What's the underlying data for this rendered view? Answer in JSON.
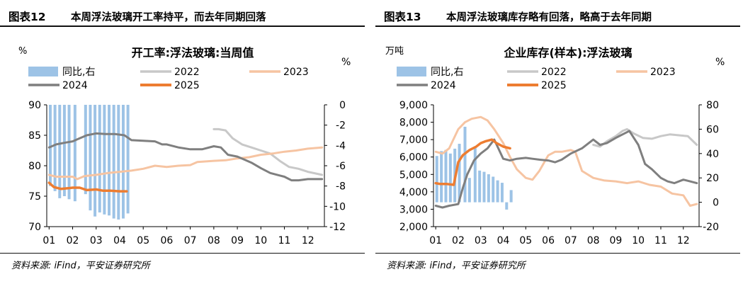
{
  "panels": [
    {
      "figure_label": "图表12",
      "heading": "本周浮法玻璃开工率持平，而去年同期回落",
      "source": "资料来源: iFind，平安证券研究所"
    },
    {
      "figure_label": "图表13",
      "heading": "本周浮法玻璃库存略有回落，略高于去年同期",
      "source": "资料来源: iFind，平安证券研究所"
    }
  ],
  "colors": {
    "c2022": "#c8c8c8",
    "c2023": "#f6c4a2",
    "c2024": "#7f7f7f",
    "c2025": "#ed7d31",
    "bar": "#9dc3e6"
  },
  "chart_data": [
    {
      "type": "line",
      "title": "开工率:浮法玻璃:当周值",
      "left_unit": "%",
      "right_unit": "%",
      "ylim": [
        70,
        90
      ],
      "y2lim": [
        -12,
        0
      ],
      "yticks": [
        "90",
        "85",
        "80",
        "75",
        "70"
      ],
      "y2ticks": [
        "0",
        "-2",
        "-4",
        "-6",
        "-8",
        "-10",
        "-12"
      ],
      "categories": [
        "01",
        "02",
        "03",
        "04",
        "05",
        "06",
        "07",
        "08",
        "09",
        "10",
        "11",
        "12"
      ],
      "legend": [
        "同比,右",
        "2022",
        "2023",
        "2024",
        "2025"
      ],
      "series": [
        {
          "name": "2022",
          "axis": "left",
          "x": [
            8,
            8.2,
            8.5,
            8.8,
            9.2,
            9.6,
            10,
            10.4,
            10.8,
            11.2,
            11.6,
            12,
            12.6
          ],
          "y": [
            86,
            86,
            85.8,
            84.5,
            83.5,
            83,
            82.5,
            82,
            80.8,
            79.8,
            79.5,
            79,
            78.5
          ]
        },
        {
          "name": "2023",
          "axis": "left",
          "x": [
            1,
            1.3,
            1.6,
            2,
            2.2,
            2.5,
            3,
            3.5,
            4,
            4.5,
            5,
            5.5,
            6,
            6.5,
            7,
            7.3,
            8,
            8.5,
            9,
            9.5,
            10,
            10.5,
            11,
            11.5,
            12,
            12.6
          ],
          "y": [
            78.5,
            78.2,
            78.2,
            78.2,
            77.8,
            78.3,
            78.5,
            78.8,
            79,
            79.2,
            79.5,
            80,
            79.8,
            80,
            80.1,
            80.6,
            80.8,
            80.9,
            81.2,
            81.4,
            81.8,
            82,
            82.3,
            82.5,
            82.8,
            83
          ]
        },
        {
          "name": "2024",
          "axis": "left",
          "x": [
            1,
            1.3,
            1.7,
            2,
            2.3,
            2.6,
            3,
            3.4,
            3.8,
            4.2,
            4.5,
            5,
            5.5,
            5.8,
            6,
            6.5,
            7,
            7.5,
            8,
            8.3,
            8.6,
            9,
            9.3,
            9.6,
            10,
            10.4,
            10.8,
            11,
            11.3,
            11.6,
            12,
            12.6
          ],
          "y": [
            83,
            83.5,
            83.8,
            84,
            84.5,
            85,
            85.3,
            85.2,
            85.2,
            85,
            84.2,
            84.1,
            84,
            83.5,
            83.5,
            83,
            82.7,
            82.7,
            83.2,
            83,
            81.8,
            81.5,
            81,
            80.5,
            79.6,
            78.8,
            78.4,
            78.2,
            77.6,
            77.6,
            77.8,
            77.8
          ]
        },
        {
          "name": "2025",
          "axis": "left",
          "x": [
            1,
            1.2,
            1.5,
            1.8,
            2,
            2.3,
            2.6,
            3,
            3.3,
            3.6,
            4,
            4.3
          ],
          "y": [
            77.2,
            76.5,
            76.2,
            76.3,
            76.4,
            76.4,
            76,
            76.1,
            75.9,
            75.9,
            75.8,
            75.8
          ]
        },
        {
          "name": "同比,右",
          "axis": "right",
          "type": "bar",
          "x": [
            1.05,
            1.25,
            1.45,
            1.65,
            1.85,
            2.1,
            2.3,
            2.55,
            2.75,
            2.95,
            3.15,
            3.35,
            3.55,
            3.75,
            3.95,
            4.15,
            4.35
          ],
          "y": [
            -8,
            -8.5,
            -9.2,
            -9,
            -9.3,
            -9.5,
            0,
            -8.8,
            -10.4,
            -11,
            -10.6,
            -10.8,
            -10.9,
            -11.2,
            -11.3,
            -11.2,
            -10.7
          ]
        }
      ]
    },
    {
      "type": "line",
      "title": "企业库存(样本):浮法玻璃",
      "left_unit": "万吨",
      "right_unit": "%",
      "ylim": [
        2000,
        9000
      ],
      "y2lim": [
        -20,
        80
      ],
      "yticks": [
        "9,000",
        "8,000",
        "7,000",
        "6,000",
        "5,000",
        "4,000",
        "3,000",
        "2,000"
      ],
      "y2ticks": [
        "80",
        "60",
        "40",
        "20",
        "0",
        "-20"
      ],
      "categories": [
        "01",
        "02",
        "03",
        "04",
        "05",
        "06",
        "07",
        "08",
        "09",
        "10",
        "11",
        "12"
      ],
      "legend": [
        "同比,右",
        "2022",
        "2023",
        "2024",
        "2025"
      ],
      "series": [
        {
          "name": "2022",
          "axis": "left",
          "x": [
            8,
            8.3,
            8.6,
            9,
            9.3,
            9.5,
            9.8,
            10.2,
            10.6,
            11,
            11.4,
            11.8,
            12.2,
            12.6
          ],
          "y": [
            6700,
            6600,
            6900,
            7200,
            7500,
            7600,
            7350,
            7100,
            7050,
            7200,
            7300,
            7250,
            7200,
            6700
          ]
        },
        {
          "name": "2023",
          "axis": "left",
          "x": [
            1,
            1.3,
            1.6,
            2,
            2.3,
            2.6,
            3,
            3.3,
            3.6,
            4,
            4.3,
            4.6,
            5,
            5.3,
            5.6,
            6,
            6.3,
            6.6,
            7,
            7.2,
            7.5,
            8,
            8.5,
            9,
            9.5,
            10,
            10.5,
            11,
            11.5,
            12,
            12.3,
            12.6
          ],
          "y": [
            6300,
            6200,
            6500,
            7600,
            8000,
            8200,
            8300,
            8100,
            7600,
            6800,
            6000,
            5300,
            4800,
            4700,
            5200,
            6100,
            6300,
            6300,
            6400,
            6300,
            5200,
            4800,
            4650,
            4600,
            4500,
            4600,
            4400,
            4300,
            3900,
            3800,
            3200,
            3300
          ]
        },
        {
          "name": "2024",
          "axis": "left",
          "x": [
            1,
            1.3,
            1.6,
            2,
            2.2,
            2.4,
            2.7,
            3,
            3.3,
            3.6,
            4,
            4.3,
            4.6,
            5,
            5.3,
            5.6,
            6,
            6.3,
            6.6,
            7,
            7.5,
            8,
            8.3,
            8.6,
            9,
            9.3,
            9.6,
            10,
            10.3,
            10.6,
            11,
            11.3,
            11.6,
            12,
            12.3,
            12.6
          ],
          "y": [
            3200,
            3100,
            3200,
            3300,
            4200,
            5000,
            5800,
            6200,
            6500,
            7000,
            5900,
            5800,
            5900,
            5950,
            5900,
            5850,
            5800,
            5700,
            5850,
            6200,
            6500,
            7000,
            6700,
            6800,
            7100,
            7300,
            7500,
            6700,
            5600,
            5300,
            4800,
            4600,
            4500,
            4700,
            4600,
            4500
          ]
        },
        {
          "name": "2025",
          "axis": "left",
          "x": [
            1,
            1.2,
            1.5,
            1.8,
            2,
            2.2,
            2.5,
            2.8,
            3,
            3.2,
            3.5,
            3.7,
            4,
            4.3
          ],
          "y": [
            4500,
            4450,
            4450,
            4400,
            5700,
            6100,
            6400,
            6600,
            6800,
            6900,
            7000,
            6800,
            6600,
            6500
          ]
        },
        {
          "name": "同比,右",
          "axis": "right",
          "type": "bar",
          "x": [
            1.05,
            1.25,
            1.45,
            1.65,
            1.85,
            2.05,
            2.3,
            2.5,
            2.75,
            2.95,
            3.15,
            3.35,
            3.55,
            3.75,
            3.95,
            4.15,
            4.35
          ],
          "y": [
            38,
            42,
            43,
            40,
            44,
            48,
            62,
            20,
            45,
            26,
            25,
            23,
            21,
            18,
            16,
            -6,
            10
          ]
        }
      ]
    }
  ]
}
